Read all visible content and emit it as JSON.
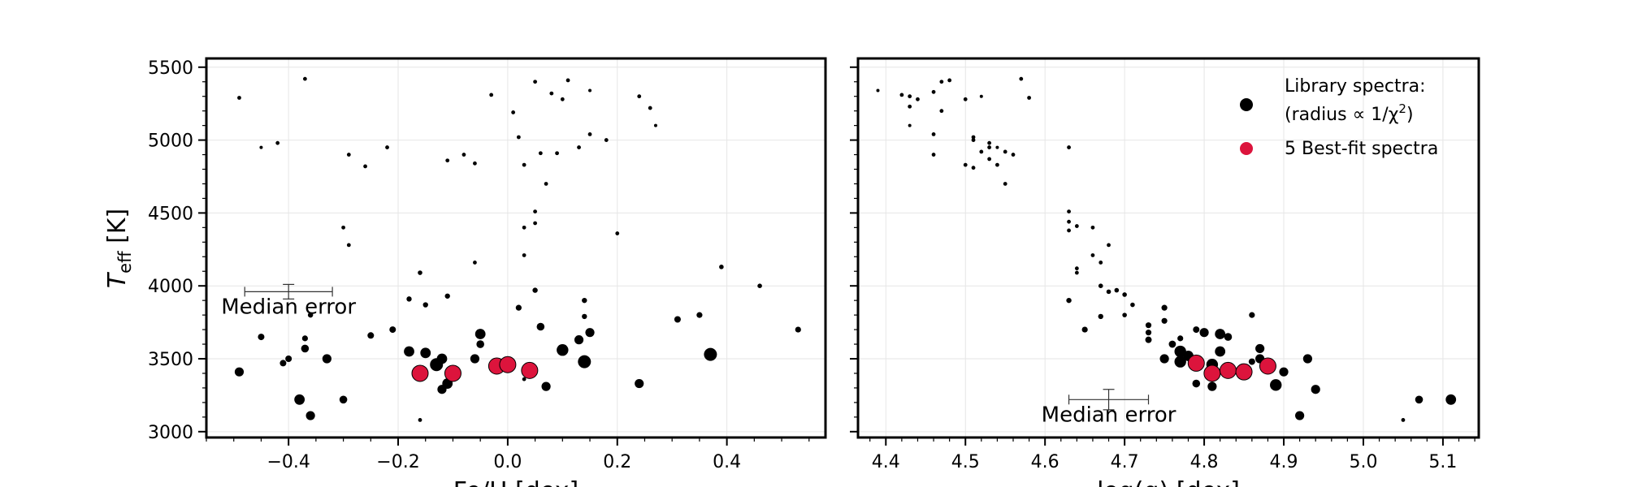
{
  "chart_data": [
    {
      "type": "scatter",
      "panel": "left",
      "xlabel": "Fe/H [dex]",
      "ylabel_main": "T",
      "ylabel_sub": "eff",
      "ylabel_unit": " [K]",
      "xlim": [
        -0.55,
        0.58
      ],
      "ylim": [
        2960,
        5560
      ],
      "xticks": [
        -0.4,
        -0.2,
        0.0,
        0.2,
        0.4
      ],
      "xtick_labels": [
        "−0.4",
        "−0.2",
        "0.0",
        "0.2",
        "0.4"
      ],
      "xminor_step": 0.05,
      "yticks": [
        3000,
        3500,
        4000,
        4500,
        5000,
        5500
      ],
      "ytick_labels": [
        "3000",
        "3500",
        "4000",
        "4500",
        "5000",
        "5500"
      ],
      "yminor_step": 100,
      "grid": true,
      "series": [
        {
          "style": "library",
          "points": [
            [
              -0.49,
              5290,
              0.3
            ],
            [
              -0.37,
              5420,
              0.3
            ],
            [
              -0.42,
              4980,
              0.3
            ],
            [
              -0.45,
              4950,
              0.25
            ],
            [
              -0.29,
              4900,
              0.3
            ],
            [
              -0.26,
              4820,
              0.3
            ],
            [
              -0.22,
              4950,
              0.3
            ],
            [
              -0.3,
              4400,
              0.3
            ],
            [
              -0.29,
              4280,
              0.3
            ],
            [
              -0.03,
              5310,
              0.3
            ],
            [
              0.05,
              5400,
              0.3
            ],
            [
              0.11,
              5410,
              0.3
            ],
            [
              0.08,
              5320,
              0.3
            ],
            [
              0.1,
              5280,
              0.3
            ],
            [
              0.15,
              5340,
              0.25
            ],
            [
              0.01,
              5190,
              0.3
            ],
            [
              0.02,
              5020,
              0.3
            ],
            [
              0.03,
              4830,
              0.3
            ],
            [
              0.06,
              4910,
              0.3
            ],
            [
              -0.08,
              4900,
              0.3
            ],
            [
              -0.06,
              4840,
              0.3
            ],
            [
              -0.11,
              4860,
              0.3
            ],
            [
              0.09,
              4910,
              0.3
            ],
            [
              0.13,
              4950,
              0.3
            ],
            [
              0.15,
              5040,
              0.3
            ],
            [
              0.18,
              5000,
              0.3
            ],
            [
              0.24,
              5300,
              0.3
            ],
            [
              0.26,
              5220,
              0.3
            ],
            [
              0.27,
              5100,
              0.25
            ],
            [
              0.07,
              4700,
              0.3
            ],
            [
              0.05,
              4510,
              0.3
            ],
            [
              0.05,
              4430,
              0.3
            ],
            [
              0.03,
              4400,
              0.3
            ],
            [
              0.03,
              4210,
              0.3
            ],
            [
              0.2,
              4360,
              0.3
            ],
            [
              0.39,
              4130,
              0.35
            ],
            [
              0.46,
              4000,
              0.35
            ],
            [
              -0.06,
              4160,
              0.3
            ],
            [
              -0.16,
              4090,
              0.35
            ],
            [
              -0.18,
              3910,
              0.4
            ],
            [
              -0.15,
              3870,
              0.4
            ],
            [
              -0.11,
              3930,
              0.4
            ],
            [
              0.05,
              3970,
              0.4
            ],
            [
              0.02,
              3850,
              0.45
            ],
            [
              0.14,
              3900,
              0.4
            ],
            [
              0.14,
              3790,
              0.4
            ],
            [
              0.31,
              3770,
              0.5
            ],
            [
              0.35,
              3800,
              0.45
            ],
            [
              0.53,
              3700,
              0.45
            ],
            [
              -0.36,
              3800,
              0.4
            ],
            [
              -0.25,
              3660,
              0.5
            ],
            [
              -0.21,
              3700,
              0.5
            ],
            [
              -0.45,
              3650,
              0.5
            ],
            [
              -0.37,
              3640,
              0.45
            ],
            [
              -0.37,
              3570,
              0.6
            ],
            [
              -0.33,
              3500,
              0.7
            ],
            [
              -0.4,
              3500,
              0.5
            ],
            [
              -0.41,
              3470,
              0.5
            ],
            [
              -0.49,
              3410,
              0.7
            ],
            [
              -0.38,
              3220,
              0.8
            ],
            [
              -0.3,
              3220,
              0.6
            ],
            [
              -0.36,
              3110,
              0.7
            ],
            [
              -0.16,
              3080,
              0.3
            ],
            [
              -0.18,
              3550,
              0.8
            ],
            [
              -0.15,
              3540,
              0.8
            ],
            [
              -0.12,
              3500,
              0.8
            ],
            [
              -0.13,
              3460,
              1.0
            ],
            [
              -0.11,
              3330,
              0.8
            ],
            [
              -0.12,
              3290,
              0.7
            ],
            [
              -0.05,
              3670,
              0.8
            ],
            [
              -0.05,
              3600,
              0.6
            ],
            [
              -0.06,
              3500,
              0.7
            ],
            [
              0.06,
              3720,
              0.6
            ],
            [
              0.1,
              3560,
              0.9
            ],
            [
              0.13,
              3630,
              0.7
            ],
            [
              0.15,
              3680,
              0.7
            ],
            [
              0.14,
              3480,
              1.0
            ],
            [
              0.24,
              3330,
              0.7
            ],
            [
              0.37,
              3530,
              1.0
            ],
            [
              0.07,
              3310,
              0.7
            ],
            [
              0.03,
              3360,
              0.3
            ]
          ]
        },
        {
          "style": "best",
          "points": [
            [
              -0.16,
              3400,
              1
            ],
            [
              -0.1,
              3400,
              1
            ],
            [
              -0.02,
              3450,
              1
            ],
            [
              0.0,
              3460,
              1
            ],
            [
              0.04,
              3420,
              1
            ]
          ]
        }
      ],
      "annotation": {
        "text": "Median error",
        "x": -0.4,
        "y": 3960,
        "xerr": 0.08,
        "yerr": 50
      }
    },
    {
      "type": "scatter",
      "panel": "right",
      "xlabel": "log(g) [dex]",
      "xlim": [
        4.365,
        5.145
      ],
      "ylim": [
        2960,
        5560
      ],
      "xticks": [
        4.4,
        4.5,
        4.6,
        4.7,
        4.8,
        4.9,
        5.0,
        5.1
      ],
      "xtick_labels": [
        "4.4",
        "4.5",
        "4.6",
        "4.7",
        "4.8",
        "4.9",
        "5.0",
        "5.1"
      ],
      "xminor_step": 0.02,
      "yticks": [
        3000,
        3500,
        4000,
        4500,
        5000,
        5500
      ],
      "yminor_step": 100,
      "grid": true,
      "series": [
        {
          "style": "library",
          "points": [
            [
              4.39,
              5340,
              0.25
            ],
            [
              4.42,
              5310,
              0.3
            ],
            [
              4.43,
              5300,
              0.3
            ],
            [
              4.43,
              5230,
              0.3
            ],
            [
              4.43,
              5100,
              0.25
            ],
            [
              4.44,
              5280,
              0.3
            ],
            [
              4.46,
              5330,
              0.3
            ],
            [
              4.47,
              5400,
              0.3
            ],
            [
              4.48,
              5410,
              0.3
            ],
            [
              4.47,
              5200,
              0.3
            ],
            [
              4.46,
              5040,
              0.3
            ],
            [
              4.46,
              4900,
              0.3
            ],
            [
              4.5,
              5280,
              0.3
            ],
            [
              4.52,
              5300,
              0.25
            ],
            [
              4.57,
              5420,
              0.3
            ],
            [
              4.58,
              5290,
              0.3
            ],
            [
              4.51,
              5020,
              0.3
            ],
            [
              4.51,
              5000,
              0.3
            ],
            [
              4.53,
              4980,
              0.3
            ],
            [
              4.53,
              4950,
              0.3
            ],
            [
              4.54,
              4950,
              0.25
            ],
            [
              4.52,
              4920,
              0.3
            ],
            [
              4.55,
              4920,
              0.3
            ],
            [
              4.56,
              4900,
              0.3
            ],
            [
              4.53,
              4870,
              0.3
            ],
            [
              4.54,
              4830,
              0.3
            ],
            [
              4.5,
              4830,
              0.3
            ],
            [
              4.51,
              4810,
              0.3
            ],
            [
              4.55,
              4700,
              0.3
            ],
            [
              4.63,
              4950,
              0.3
            ],
            [
              4.63,
              4510,
              0.3
            ],
            [
              4.63,
              4440,
              0.3
            ],
            [
              4.63,
              4380,
              0.3
            ],
            [
              4.64,
              4410,
              0.3
            ],
            [
              4.66,
              4400,
              0.3
            ],
            [
              4.68,
              4280,
              0.3
            ],
            [
              4.66,
              4210,
              0.3
            ],
            [
              4.67,
              4160,
              0.3
            ],
            [
              4.64,
              4120,
              0.3
            ],
            [
              4.64,
              4090,
              0.3
            ],
            [
              4.67,
              4000,
              0.35
            ],
            [
              4.68,
              3960,
              0.35
            ],
            [
              4.69,
              3970,
              0.35
            ],
            [
              4.7,
              3940,
              0.35
            ],
            [
              4.71,
              3870,
              0.35
            ],
            [
              4.7,
              3800,
              0.35
            ],
            [
              4.67,
              3790,
              0.4
            ],
            [
              4.63,
              3900,
              0.4
            ],
            [
              4.65,
              3700,
              0.45
            ],
            [
              4.73,
              3730,
              0.45
            ],
            [
              4.73,
              3680,
              0.45
            ],
            [
              4.73,
              3630,
              0.5
            ],
            [
              4.75,
              3850,
              0.45
            ],
            [
              4.75,
              3760,
              0.45
            ],
            [
              4.77,
              3640,
              0.45
            ],
            [
              4.79,
              3700,
              0.5
            ],
            [
              4.76,
              3600,
              0.55
            ],
            [
              4.77,
              3550,
              0.9
            ],
            [
              4.78,
              3520,
              0.8
            ],
            [
              4.75,
              3500,
              0.7
            ],
            [
              4.77,
              3480,
              0.9
            ],
            [
              4.79,
              3460,
              0.8
            ],
            [
              4.79,
              3330,
              0.6
            ],
            [
              4.8,
              3680,
              0.7
            ],
            [
              4.82,
              3670,
              0.8
            ],
            [
              4.83,
              3650,
              0.6
            ],
            [
              4.82,
              3550,
              0.8
            ],
            [
              4.81,
              3460,
              0.9
            ],
            [
              4.81,
              3310,
              0.7
            ],
            [
              4.86,
              3800,
              0.45
            ],
            [
              4.87,
              3570,
              0.7
            ],
            [
              4.86,
              3480,
              0.5
            ],
            [
              4.87,
              3500,
              0.7
            ],
            [
              4.9,
              3410,
              0.7
            ],
            [
              4.89,
              3320,
              0.9
            ],
            [
              4.93,
              3500,
              0.7
            ],
            [
              4.94,
              3290,
              0.7
            ],
            [
              4.92,
              3110,
              0.7
            ],
            [
              5.05,
              3080,
              0.3
            ],
            [
              5.07,
              3220,
              0.6
            ],
            [
              5.11,
              3220,
              0.8
            ]
          ]
        },
        {
          "style": "best",
          "points": [
            [
              4.79,
              3470,
              1
            ],
            [
              4.81,
              3400,
              1
            ],
            [
              4.83,
              3420,
              1
            ],
            [
              4.85,
              3410,
              1
            ],
            [
              4.88,
              3450,
              1
            ]
          ]
        }
      ],
      "annotation": {
        "text": "Median error",
        "x": 4.68,
        "y": 3220,
        "xerr": 0.05,
        "yerr": 70
      },
      "legend": {
        "placement": "top-right",
        "entries": [
          {
            "line1": "Library spectra:",
            "line2_prefix": "(radius ∝ 1/χ",
            "line2_sup": "2",
            "line2_suffix": ")",
            "color": "#000000"
          },
          {
            "line1": "5 Best-fit spectra",
            "color": "#dc143c"
          }
        ]
      }
    }
  ],
  "colors": {
    "library": "#000000",
    "best": "#dc143c",
    "grid": "#e6e6e6"
  }
}
